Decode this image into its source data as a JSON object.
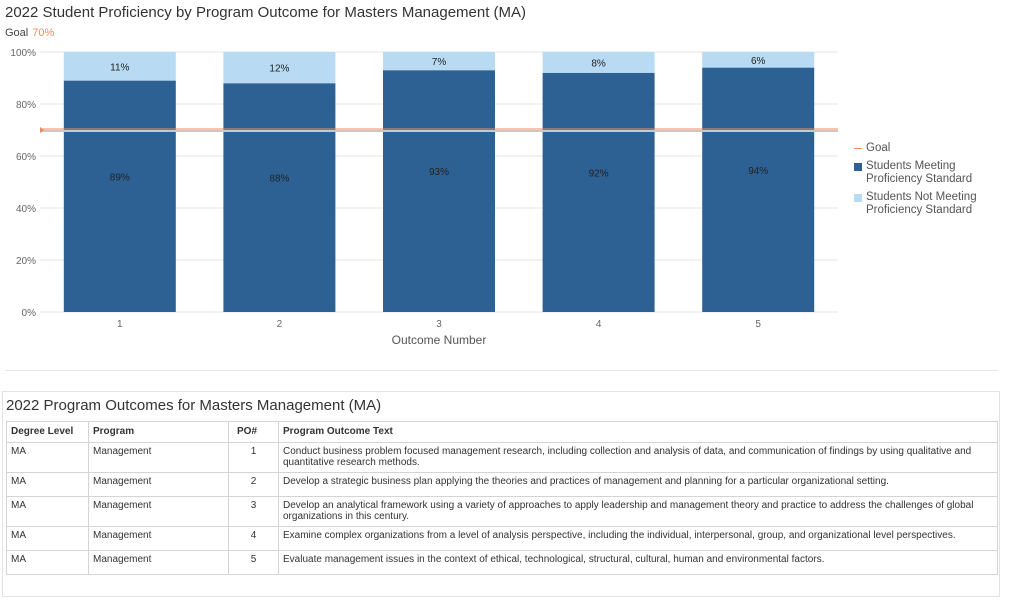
{
  "colors": {
    "meeting": "#2e6193",
    "not_meeting": "#b9daf3",
    "goal": "#f08a5c",
    "goal_line": "#c8c8c8",
    "grid": "#e6e6e6"
  },
  "goal_label": {
    "text": "Goal",
    "value": "70%"
  },
  "chart_data": {
    "type": "bar",
    "stacked": true,
    "title": "2022 Student Proficiency by Program Outcome for Masters Management (MA)",
    "xlabel": "Outcome Number",
    "ylabel": "",
    "categories": [
      "1",
      "2",
      "3",
      "4",
      "5"
    ],
    "series": [
      {
        "name": "Students Meeting Proficiency Standard",
        "values": [
          89,
          88,
          93,
          92,
          94
        ],
        "labels": [
          "89%",
          "88%",
          "93%",
          "92%",
          "94%"
        ],
        "color": "#2e6193"
      },
      {
        "name": "Students Not Meeting Proficiency Standard",
        "values": [
          11,
          12,
          7,
          8,
          6
        ],
        "labels": [
          "11%",
          "12%",
          "7%",
          "8%",
          "6%"
        ],
        "color": "#b9daf3"
      }
    ],
    "goal": {
      "name": "Goal",
      "value": 70
    },
    "ylim": [
      0,
      100
    ],
    "yticks": [
      0,
      20,
      40,
      60,
      80,
      100
    ],
    "ytick_labels": [
      "0%",
      "20%",
      "40%",
      "60%",
      "80%",
      "100%"
    ],
    "grid": true,
    "legend_position": "right"
  },
  "table": {
    "title": "2022 Program Outcomes for Masters Management (MA)",
    "headers": [
      "Degree Level",
      "Program",
      "PO#",
      "Program Outcome Text"
    ],
    "rows": [
      [
        "MA",
        "Management",
        "1",
        "Conduct business problem focused management research, including collection and analysis of data, and communication of findings by using qualitative and quantitative research methods."
      ],
      [
        "MA",
        "Management",
        "2",
        "Develop a strategic business plan applying the theories and practices of management and planning for a particular organizational setting."
      ],
      [
        "MA",
        "Management",
        "3",
        "Develop an analytical framework using a variety of approaches to apply leadership and management theory and practice to address the challenges of global organizations in this century."
      ],
      [
        "MA",
        "Management",
        "4",
        "Examine complex organizations from a level of analysis perspective, including the individual, interpersonal, group, and organizational level perspectives."
      ],
      [
        "MA",
        "Management",
        "5",
        "Evaluate management issues in the context of ethical, technological, structural, cultural, human and environmental factors."
      ]
    ]
  }
}
